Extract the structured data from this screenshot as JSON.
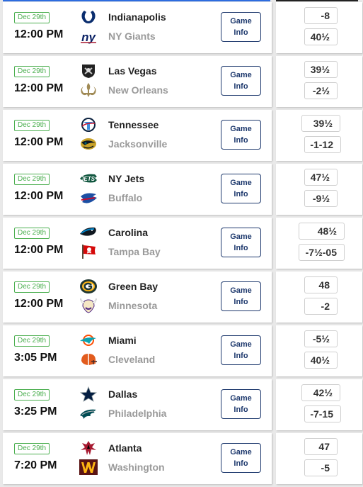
{
  "game_info_label": [
    "Game",
    "Info"
  ],
  "games": [
    {
      "date": "Dec 29th",
      "time": "12:00 PM",
      "team1": "Indianapolis",
      "team2": "NY Giants",
      "odds1": "-8",
      "odds2": "40½",
      "logo1": "colts-horseshoe-icon",
      "logo2": "giants-ny-icon",
      "c1": "#0a2d6e",
      "c2": "#0b2265"
    },
    {
      "date": "Dec 29th",
      "time": "12:00 PM",
      "team1": "Las Vegas",
      "team2": "New Orleans",
      "odds1": "39½",
      "odds2": "-2½",
      "logo1": "raiders-shield-icon",
      "logo2": "saints-fleur-de-lis-icon",
      "c1": "#000000",
      "c2": "#a08a55"
    },
    {
      "date": "Dec 29th",
      "time": "12:00 PM",
      "team1": "Tennessee",
      "team2": "Jacksonville",
      "odds1": "39½",
      "odds2": "-1-12",
      "logo1": "titans-icon",
      "logo2": "jaguars-icon",
      "c1": "#3d8ede",
      "c2": "#c9a227"
    },
    {
      "date": "Dec 29th",
      "time": "12:00 PM",
      "team1": "NY Jets",
      "team2": "Buffalo",
      "odds1": "47½",
      "odds2": "-9½",
      "logo1": "jets-icon",
      "logo2": "bills-icon",
      "c1": "#125740",
      "c2": "#1c4fa3"
    },
    {
      "date": "Dec 29th",
      "time": "12:00 PM",
      "team1": "Carolina",
      "team2": "Tampa Bay",
      "odds1": "48½",
      "odds2": "-7½-05",
      "logo1": "panthers-icon",
      "logo2": "buccaneers-flag-icon",
      "c1": "#0085ca",
      "c2": "#d50a0a"
    },
    {
      "date": "Dec 29th",
      "time": "12:00 PM",
      "team1": "Green Bay",
      "team2": "Minnesota",
      "odds1": "48",
      "odds2": "-2",
      "logo1": "packers-g-icon",
      "logo2": "vikings-helmet-icon",
      "c1": "#203731",
      "c2": "#4f2683"
    },
    {
      "date": "Dec 29th",
      "time": "3:05 PM",
      "team1": "Miami",
      "team2": "Cleveland",
      "odds1": "-5½",
      "odds2": "40½",
      "logo1": "dolphins-icon",
      "logo2": "browns-helmet-icon",
      "c1": "#0ca3b0",
      "c2": "#e25c1e"
    },
    {
      "date": "Dec 29th",
      "time": "3:25 PM",
      "team1": "Dallas",
      "team2": "Philadelphia",
      "odds1": "42½",
      "odds2": "-7-15",
      "logo1": "cowboys-star-icon",
      "logo2": "eagles-icon",
      "c1": "#041e42",
      "c2": "#004c54"
    },
    {
      "date": "Dec 29th",
      "time": "7:20 PM",
      "team1": "Atlanta",
      "team2": "Washington",
      "odds1": "47",
      "odds2": "-5",
      "logo1": "falcons-icon",
      "logo2": "commanders-w-icon",
      "c1": "#a71930",
      "c2": "#5a1414"
    }
  ]
}
